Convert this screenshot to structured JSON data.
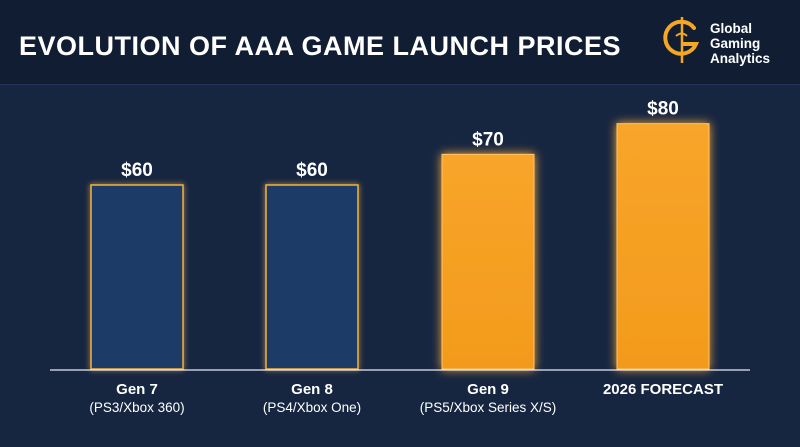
{
  "header": {
    "title": "EVOLUTION OF AAA GAME LAUNCH PRICES",
    "logo_lines": [
      "Global",
      "Gaming",
      "Analytics"
    ],
    "logo_icon": "g-dollar-logo-icon"
  },
  "colors": {
    "background": "#162540",
    "header": "#101d33",
    "bar_blue": "#1f3a66",
    "bar_orange": "#f6a126",
    "accent_gold": "#f5a623"
  },
  "chart_data": {
    "type": "bar",
    "title": "EVOLUTION OF AAA GAME LAUNCH PRICES",
    "categories": [
      "Gen 7",
      "Gen 8",
      "Gen 9",
      "2026 FORECAST"
    ],
    "subcategories": [
      "(PS3/Xbox 360)",
      "(PS4/Xbox One)",
      "(PS5/Xbox Series X/S)",
      ""
    ],
    "values": [
      60,
      60,
      70,
      80
    ],
    "value_labels": [
      "$60",
      "$60",
      "$70",
      "$80"
    ],
    "bar_colors": [
      "#1f3a66",
      "#1f3a66",
      "#f6a126",
      "#f6a126"
    ],
    "ylim": [
      0,
      90
    ],
    "grid": false,
    "xlabel": "",
    "ylabel": ""
  }
}
